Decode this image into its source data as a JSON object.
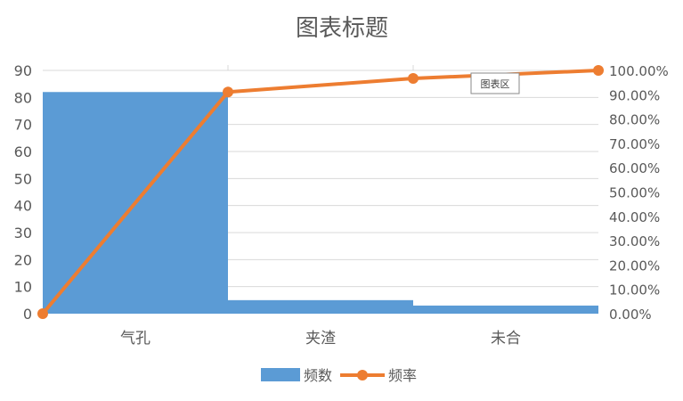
{
  "chart_data": {
    "type": "bar",
    "title": "图表标题",
    "categories": [
      "气孔",
      "夹渣",
      "未合"
    ],
    "series": [
      {
        "name": "频数",
        "type": "bar",
        "axis": "left",
        "values": [
          82,
          5,
          3
        ]
      },
      {
        "name": "频率",
        "type": "line",
        "axis": "right",
        "x": [
          0,
          1,
          2,
          3
        ],
        "values": [
          0,
          91.1,
          96.7,
          100
        ]
      }
    ],
    "y_left": {
      "ylim": [
        0,
        90
      ],
      "ticks": [
        "0",
        "10",
        "20",
        "30",
        "40",
        "50",
        "60",
        "70",
        "80",
        "90"
      ]
    },
    "y_right": {
      "ylim": [
        0,
        100
      ],
      "ticks": [
        "0.00%",
        "10.00%",
        "20.00%",
        "30.00%",
        "40.00%",
        "50.00%",
        "60.00%",
        "70.00%",
        "80.00%",
        "90.00%",
        "100.00%"
      ]
    },
    "grid": true,
    "legend": "bottom",
    "tooltip": "图表区",
    "colors": {
      "bar": "#5B9BD5",
      "line": "#ED7D31",
      "grid": "#d9d9d9",
      "text": "#595959"
    }
  }
}
